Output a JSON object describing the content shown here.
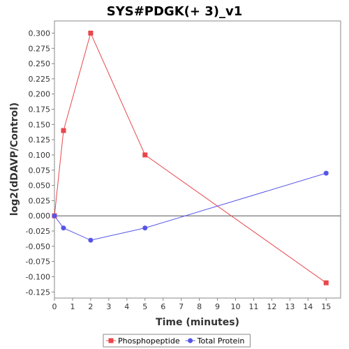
{
  "chart_data": {
    "type": "line",
    "title": "SYS#PDGK(+ 3)_v1",
    "xlabel": "Time (minutes)",
    "ylabel": "log2(dDAVP/Control)",
    "xlim": [
      0,
      15.8
    ],
    "ylim": [
      -0.135,
      0.32
    ],
    "x_ticks": [
      0,
      1,
      2,
      3,
      4,
      5,
      6,
      7,
      8,
      9,
      10,
      11,
      12,
      13,
      14,
      15
    ],
    "y_ticks": [
      -0.125,
      -0.1,
      -0.075,
      -0.05,
      -0.025,
      0.0,
      0.025,
      0.05,
      0.075,
      0.1,
      0.125,
      0.15,
      0.175,
      0.2,
      0.225,
      0.25,
      0.275,
      0.3
    ],
    "y_tick_labels": [
      "-0.125",
      "-0.100",
      "-0.075",
      "-0.050",
      "-0.025",
      "0.000",
      "0.025",
      "0.050",
      "0.075",
      "0.100",
      "0.125",
      "0.150",
      "0.175",
      "0.200",
      "0.225",
      "0.250",
      "0.275",
      "0.300"
    ],
    "zero_line": true,
    "grid": false,
    "legend_position": "bottom",
    "series": [
      {
        "name": "Phosphopeptide",
        "color": "#e8474c",
        "marker": "square",
        "x": [
          0,
          0.5,
          2,
          5,
          15
        ],
        "y": [
          0.0,
          0.14,
          0.3,
          0.1,
          -0.11
        ]
      },
      {
        "name": "Total Protein",
        "color": "#5555e8",
        "marker": "circle",
        "x": [
          0,
          0.5,
          2,
          5,
          15
        ],
        "y": [
          0.0,
          -0.02,
          -0.04,
          -0.02,
          0.07
        ]
      }
    ]
  }
}
